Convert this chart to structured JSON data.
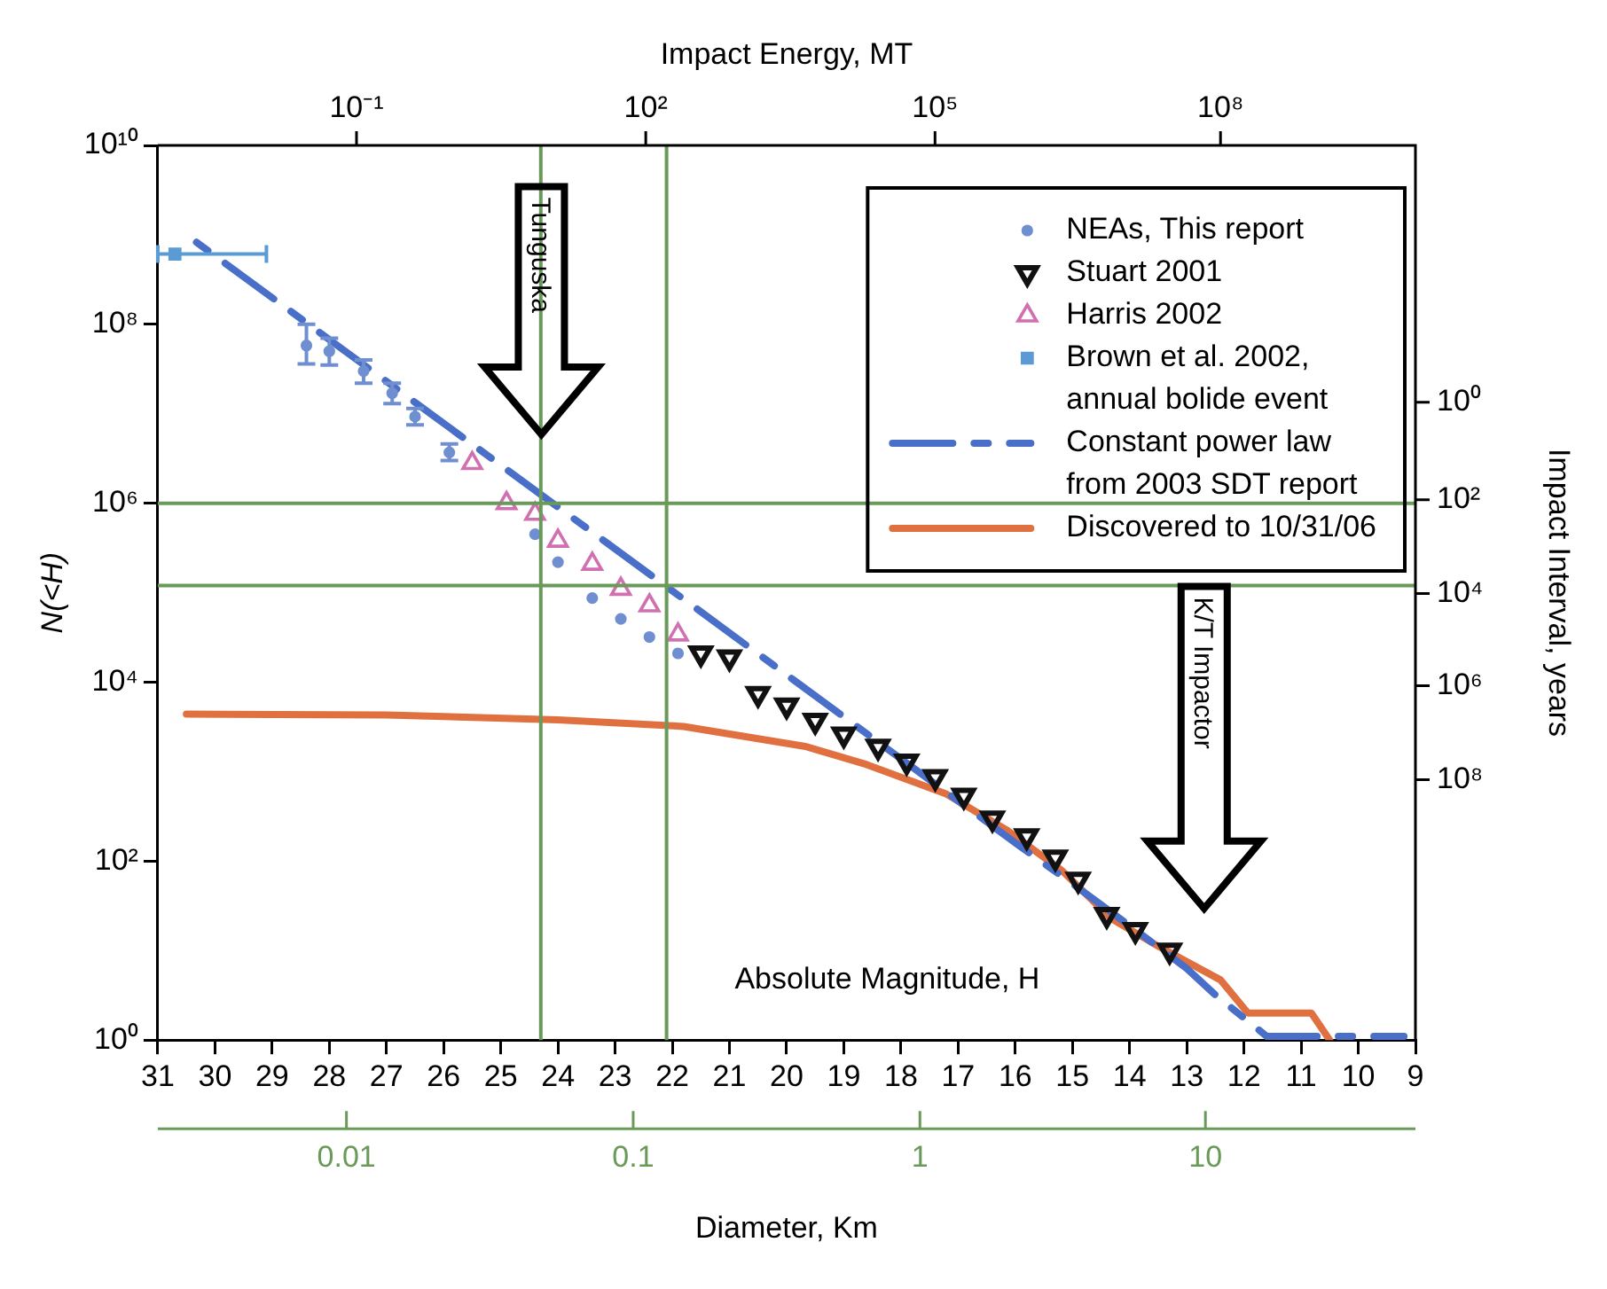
{
  "chart_data": {
    "type": "scatter",
    "xlabel": "Absolute Magnitude, H",
    "ylabel": "N(<H)",
    "y2label": "Impact Interval, years",
    "x2label": "Impact Energy, MT",
    "xlim": [
      31,
      9
    ],
    "xticks": [
      31,
      30,
      29,
      28,
      27,
      26,
      25,
      24,
      23,
      22,
      21,
      20,
      19,
      18,
      17,
      16,
      15,
      14,
      13,
      12,
      11,
      10,
      9
    ],
    "ylim": [
      1,
      10000000000
    ],
    "yticks": [
      {
        "value": 1,
        "label": "10⁰"
      },
      {
        "value": 100,
        "label": "10²"
      },
      {
        "value": 10000,
        "label": "10⁴"
      },
      {
        "value": 1000000,
        "label": "10⁶"
      },
      {
        "value": 100000000,
        "label": "10⁸"
      },
      {
        "value": 10000000000,
        "label": "10¹⁰"
      }
    ],
    "log": "y",
    "grid": false,
    "legend": "top right",
    "ref_lines": [
      {
        "axis": "x",
        "value": 24.3,
        "color": "#6a9a5a"
      },
      {
        "axis": "x",
        "value": 22.1,
        "color": "#6a9a5a"
      },
      {
        "axis": "y",
        "value": 1000000,
        "color": "#6a9a5a"
      },
      {
        "axis": "y",
        "value": 120000,
        "color": "#6a9a5a"
      }
    ],
    "annotations": [
      "Tunguska",
      "K/T Impactor",
      "0.01",
      "0.1",
      "1",
      "10",
      "Diameter, Km",
      "10⁻¹",
      "10²",
      "10⁵",
      "10⁸",
      "10⁰",
      "10²",
      "10⁴",
      "10⁶",
      "10⁸"
    ],
    "series": [
      {
        "name": "NEAs, This report",
        "type": "scatter",
        "marker": "circle",
        "color": "#6f8fd0",
        "x": [
          28.4,
          28.0,
          27.4,
          26.9,
          26.5,
          25.9,
          24.4,
          24.0,
          23.4,
          22.9,
          22.4,
          21.9
        ],
        "values": [
          58000000,
          50000000,
          30000000,
          17000000,
          9300000,
          3700000,
          450000,
          220000,
          87000,
          51000,
          32000,
          21000
        ],
        "errors": [
          [
            36000000,
            100000000
          ],
          [
            35000000,
            70000000
          ],
          [
            22000000,
            40000000
          ],
          [
            13000000,
            22000000
          ],
          [
            7500000,
            11500000
          ],
          [
            3000000,
            4600000
          ],
          null,
          null,
          null,
          null,
          null,
          null
        ]
      },
      {
        "name": "Stuart 2001",
        "type": "scatter",
        "marker": "triangle-down",
        "color": "#111111",
        "x": [
          21.5,
          21.0,
          20.5,
          20.0,
          19.5,
          19.0,
          18.4,
          17.9,
          17.4,
          16.9,
          16.4,
          15.8,
          15.3,
          14.9,
          14.4,
          13.9,
          13.3
        ],
        "values": [
          21000,
          19000,
          7400,
          5500,
          3700,
          2600,
          1900,
          1300,
          870,
          540,
          300,
          190,
          110,
          62,
          25,
          17,
          10
        ]
      },
      {
        "name": "Harris 2002",
        "type": "scatter",
        "marker": "triangle",
        "color": "#d070b0",
        "x": [
          25.5,
          24.9,
          24.4,
          24.0,
          23.4,
          22.9,
          22.4,
          21.9
        ],
        "values": [
          2800000,
          1000000,
          760000,
          380000,
          210000,
          110000,
          72000,
          34000
        ]
      },
      {
        "name": "Brown et al. 2002, annual bolide event",
        "type": "scatter",
        "marker": "square",
        "color": "#5b9bd5",
        "x": [
          30.7
        ],
        "values": [
          610000000
        ],
        "xerrors": [
          [
            29.1,
            31
          ]
        ]
      },
      {
        "name": "Constant power law from 2003 SDT report",
        "type": "line",
        "line_style": "dashed",
        "marker": "none",
        "color": "#4a6fc8",
        "x": [
          30.5,
          22,
          19,
          16,
          15,
          14,
          13,
          12.5,
          11.6,
          10.8,
          10,
          9.2
        ],
        "values": [
          1000000000,
          105000,
          4100,
          160,
          56,
          19,
          6.3,
          3.2,
          1.1,
          1.1,
          1.1,
          1.1
        ]
      },
      {
        "name": "Discovered to 10/31/06",
        "type": "line",
        "line_style": "solid",
        "marker": "none",
        "color": "#e07040",
        "x": [
          30.5,
          27,
          24,
          21.8,
          19.65,
          18.6,
          17.2,
          16.14,
          15.18,
          14.33,
          13.48,
          12.41,
          11.93,
          10.82,
          10.5
        ],
        "values": [
          4400,
          4300,
          3800,
          3200,
          1900,
          1200,
          560,
          220,
          78,
          23,
          11,
          4.7,
          2,
          2,
          1
        ]
      }
    ]
  }
}
